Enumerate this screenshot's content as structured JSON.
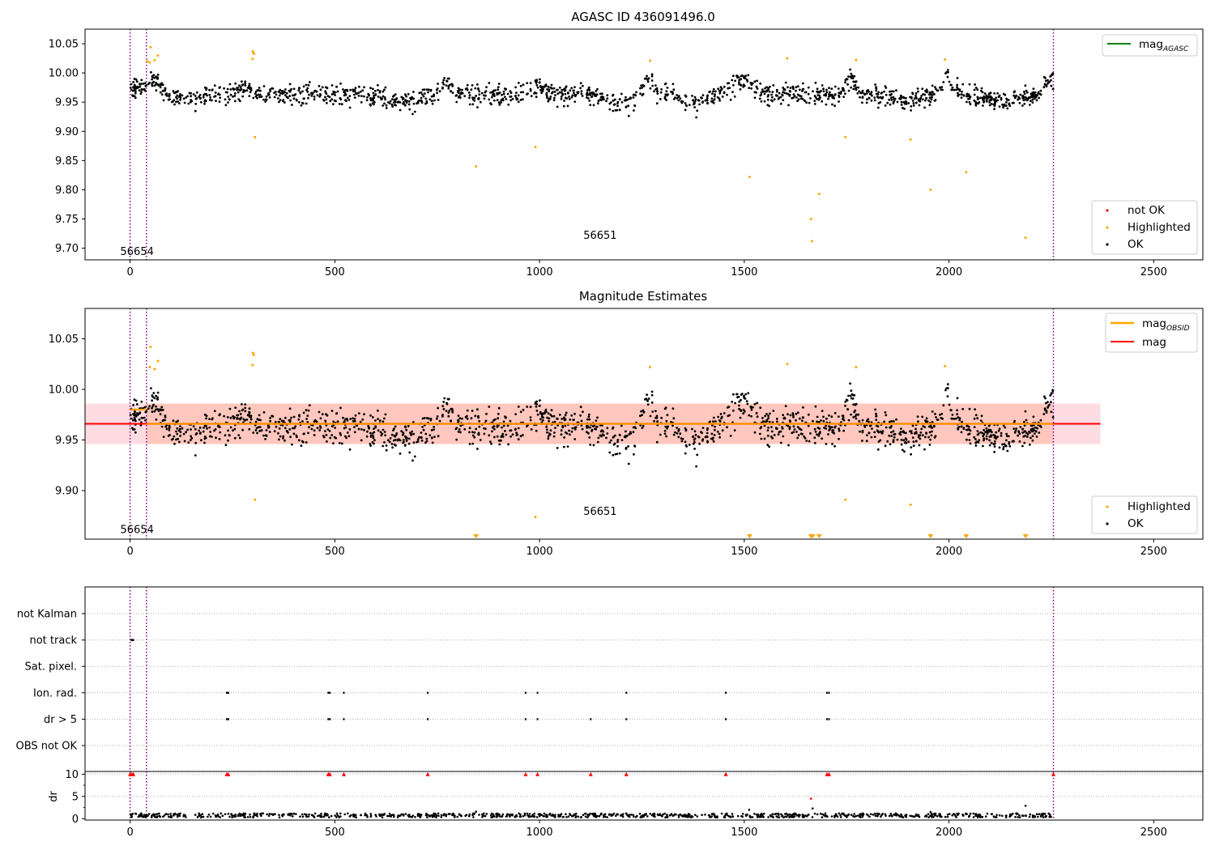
{
  "colors": {
    "ok": "#000000",
    "highlighted": "#ffa500",
    "not_ok": "#ff0000",
    "mag_agasc_line": "#008000",
    "mag_obsid_line": "#ffa500",
    "mag_line": "#ff0000",
    "obs_boundary": "#800080",
    "band_outer": "#ffc0cb",
    "band_inner": "#ffa07a",
    "grid": "#b0b0b0"
  },
  "chart_data": [
    {
      "type": "scatter",
      "title": "AGASC ID 436091496.0",
      "xlim": [
        -110,
        2620
      ],
      "ylim": [
        9.68,
        10.075
      ],
      "x_ticks": [
        0,
        500,
        1000,
        1500,
        2000,
        2500
      ],
      "y_ticks": [
        9.7,
        9.75,
        9.8,
        9.85,
        9.9,
        9.95,
        10.0,
        10.05
      ],
      "y_tick_labels": [
        "9.70",
        "9.75",
        "9.80",
        "9.85",
        "9.90",
        "9.95",
        "10.00",
        "10.05"
      ],
      "obs_boundaries": [
        0,
        40,
        2255
      ],
      "annotations": [
        {
          "text": "56654",
          "x": 17,
          "y": 9.695
        },
        {
          "text": "56651",
          "x": 1148,
          "y": 9.723
        }
      ],
      "legend_top": [
        {
          "label": "mag",
          "subscript": "AGASC",
          "color_key": "mag_agasc_line"
        }
      ],
      "legend_bottom": [
        {
          "label": "not OK",
          "color_key": "not_ok"
        },
        {
          "label": "Highlighted",
          "color_key": "highlighted"
        },
        {
          "label": "OK",
          "color_key": "ok"
        }
      ],
      "highlighted_points": [
        [
          50,
          10.044
        ],
        [
          42,
          10.02
        ],
        [
          60,
          10.022
        ],
        [
          68,
          10.03
        ],
        [
          48,
          10.018
        ],
        [
          300,
          10.037
        ],
        [
          301,
          10.034
        ],
        [
          303,
          10.033
        ],
        [
          299,
          10.024
        ],
        [
          305,
          9.89
        ],
        [
          845,
          9.84
        ],
        [
          990,
          9.873
        ],
        [
          1270,
          10.021
        ],
        [
          1513,
          9.822
        ],
        [
          1605,
          10.025
        ],
        [
          1663,
          9.75
        ],
        [
          1665,
          9.712
        ],
        [
          1683,
          9.793
        ],
        [
          1747,
          9.89
        ],
        [
          1773,
          10.022
        ],
        [
          1906,
          9.886
        ],
        [
          1955,
          9.8
        ],
        [
          1990,
          10.023
        ],
        [
          2042,
          9.83
        ],
        [
          2187,
          9.718
        ]
      ],
      "ok_band": [
        9.92,
        10.02
      ]
    },
    {
      "type": "scatter",
      "title": "Magnitude Estimates",
      "xlim": [
        -110,
        2620
      ],
      "ylim": [
        9.852,
        10.08
      ],
      "x_ticks": [
        0,
        500,
        1000,
        1500,
        2000,
        2500
      ],
      "y_ticks": [
        9.9,
        9.95,
        10.0,
        10.05
      ],
      "y_tick_labels": [
        "9.90",
        "9.95",
        "10.00",
        "10.05"
      ],
      "obs_boundaries": [
        0,
        40,
        2255
      ],
      "annotations": [
        {
          "text": "56654",
          "x": 17,
          "y": 9.862
        },
        {
          "text": "56651",
          "x": 1148,
          "y": 9.88
        }
      ],
      "legend_top": [
        {
          "label": "mag",
          "subscript": "OBSID",
          "color_key": "mag_obsid_line"
        },
        {
          "label": "mag",
          "subscript": "",
          "color_key": "mag_line"
        }
      ],
      "legend_bottom": [
        {
          "label": "Highlighted",
          "color_key": "highlighted"
        },
        {
          "label": "OK",
          "color_key": "ok"
        }
      ],
      "mag_mean": 9.966,
      "mag_band": [
        9.946,
        9.986
      ],
      "mag_band_x": [
        -110,
        2370
      ],
      "mag_obsid_segments": [
        {
          "x": [
            0,
            40
          ],
          "y": 9.98
        },
        {
          "x": [
            40,
            2255
          ],
          "y": 9.966
        }
      ],
      "highlighted_points": [
        [
          50,
          10.042
        ],
        [
          48,
          10.022
        ],
        [
          60,
          10.02
        ],
        [
          68,
          10.028
        ],
        [
          300,
          10.036
        ],
        [
          302,
          10.034
        ],
        [
          299,
          10.024
        ],
        [
          305,
          9.891
        ],
        [
          990,
          9.874
        ],
        [
          1270,
          10.022
        ],
        [
          1605,
          10.025
        ],
        [
          1747,
          9.891
        ],
        [
          1773,
          10.022
        ],
        [
          1906,
          9.886
        ],
        [
          1990,
          10.023
        ]
      ],
      "clipped_markers_x": [
        845,
        1513,
        1663,
        1667,
        1683,
        1955,
        2042,
        2187
      ],
      "ok_band": [
        9.915,
        10.015
      ]
    },
    {
      "type": "scatter",
      "title": "",
      "xlim": [
        -110,
        2620
      ],
      "x_ticks": [
        0,
        500,
        1000,
        1500,
        2000,
        2500
      ],
      "obs_boundaries": [
        0,
        40,
        2255
      ],
      "flag_rows": [
        "not Kalman",
        "not track",
        "Sat. pixel.",
        "Ion. rad.",
        "dr > 5",
        "OBS not OK"
      ],
      "flags": {
        "not track": [
          3,
          5,
          8
        ],
        "Ion. rad.": [
          236,
          240,
          484,
          488,
          522,
          727,
          966,
          995,
          1212,
          1455,
          1702,
          1707
        ],
        "dr > 5": [
          236,
          240,
          484,
          488,
          522,
          727,
          966,
          995,
          1125,
          1212,
          1455,
          1702,
          1707
        ]
      }
    },
    {
      "type": "scatter",
      "title": "",
      "ylabel": "dr",
      "xlim": [
        -110,
        2620
      ],
      "ylim": [
        -0.3,
        10.6
      ],
      "x_ticks": [
        0,
        500,
        1000,
        1500,
        2000,
        2500
      ],
      "y_ticks": [
        0,
        5,
        10
      ],
      "obs_boundaries": [
        0,
        40,
        2255
      ],
      "clipped_red_x": [
        0,
        4,
        8,
        236,
        240,
        484,
        488,
        522,
        727,
        966,
        995,
        1125,
        1212,
        1455,
        1702,
        1707,
        2255
      ],
      "outlier_points": [
        [
          1663,
          4.5
        ],
        [
          1667,
          2.3
        ],
        [
          1512,
          2.0
        ],
        [
          2187,
          2.9
        ],
        [
          845,
          1.6
        ],
        [
          1955,
          1.5
        ]
      ]
    }
  ]
}
